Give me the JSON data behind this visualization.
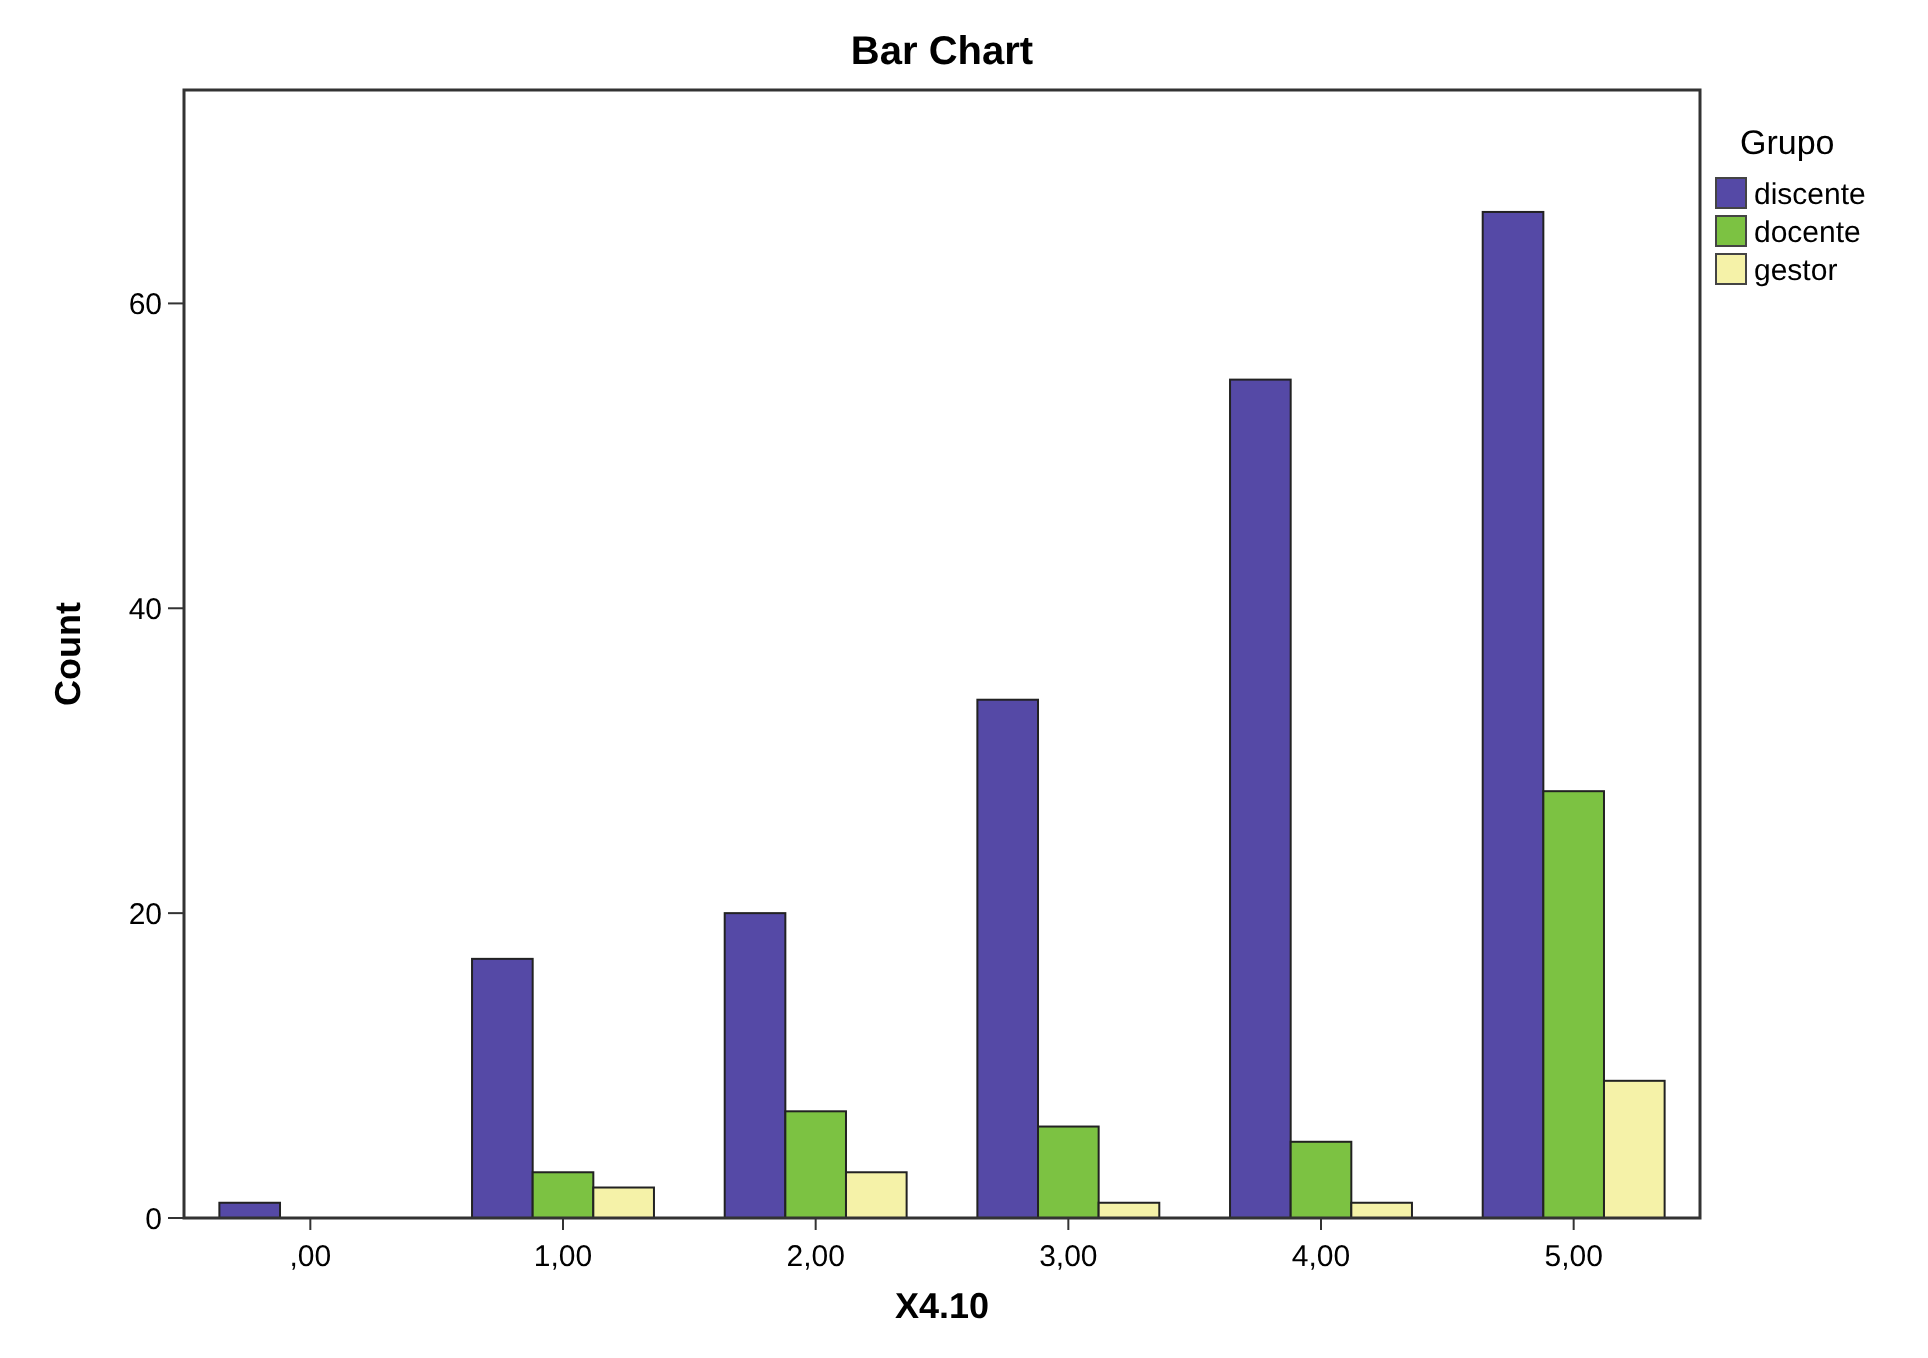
{
  "chart_data": {
    "type": "bar",
    "title": "Bar Chart",
    "xlabel": "X4.10",
    "ylabel": "Count",
    "legend_title": "Grupo",
    "legend": "top right",
    "categories": [
      ",00",
      "1,00",
      "2,00",
      "3,00",
      "4,00",
      "5,00"
    ],
    "series": [
      {
        "name": "discente",
        "color": "#5549a6",
        "values": [
          1,
          17,
          20,
          34,
          55,
          66
        ]
      },
      {
        "name": "docente",
        "color": "#7cc242",
        "values": [
          null,
          3,
          7,
          6,
          5,
          28
        ]
      },
      {
        "name": "gestor",
        "color": "#f5f2a8",
        "values": [
          null,
          2,
          3,
          1,
          1,
          9
        ]
      }
    ],
    "ylim": [
      0,
      74
    ],
    "yticks": [
      0,
      20,
      40,
      60
    ],
    "grid": false
  }
}
